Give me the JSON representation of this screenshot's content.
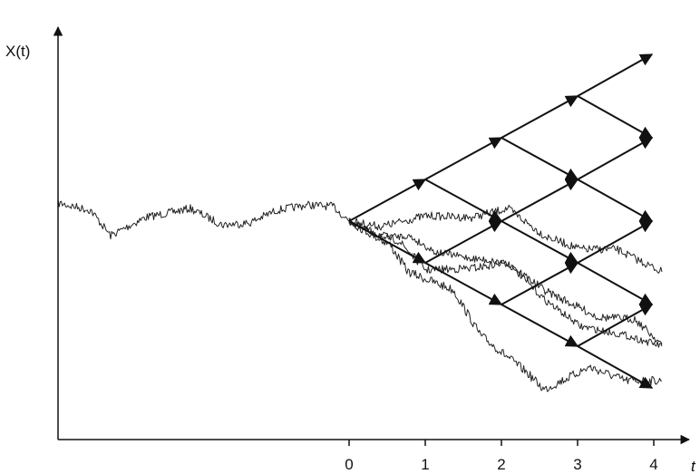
{
  "diagram": {
    "y_axis_label": "X(t)",
    "x_axis_label": "t",
    "x_ticks": [
      "0",
      "1",
      "2",
      "3",
      "4"
    ],
    "tree": {
      "type": "recombining binomial lattice",
      "steps": 4,
      "edges": [
        {
          "from": [
            0,
            0
          ],
          "to": [
            1,
            1
          ]
        },
        {
          "from": [
            0,
            0
          ],
          "to": [
            1,
            -1
          ]
        },
        {
          "from": [
            1,
            1
          ],
          "to": [
            2,
            2
          ]
        },
        {
          "from": [
            1,
            1
          ],
          "to": [
            2,
            0
          ]
        },
        {
          "from": [
            1,
            -1
          ],
          "to": [
            2,
            0
          ]
        },
        {
          "from": [
            1,
            -1
          ],
          "to": [
            2,
            -2
          ]
        },
        {
          "from": [
            2,
            2
          ],
          "to": [
            3,
            3
          ]
        },
        {
          "from": [
            2,
            2
          ],
          "to": [
            3,
            1
          ]
        },
        {
          "from": [
            2,
            0
          ],
          "to": [
            3,
            1
          ]
        },
        {
          "from": [
            2,
            0
          ],
          "to": [
            3,
            -1
          ]
        },
        {
          "from": [
            2,
            -2
          ],
          "to": [
            3,
            -1
          ]
        },
        {
          "from": [
            2,
            -2
          ],
          "to": [
            3,
            -3
          ]
        },
        {
          "from": [
            3,
            3
          ],
          "to": [
            4,
            4
          ]
        },
        {
          "from": [
            3,
            3
          ],
          "to": [
            4,
            2
          ]
        },
        {
          "from": [
            3,
            1
          ],
          "to": [
            4,
            2
          ]
        },
        {
          "from": [
            3,
            1
          ],
          "to": [
            4,
            0
          ]
        },
        {
          "from": [
            3,
            -1
          ],
          "to": [
            4,
            0
          ]
        },
        {
          "from": [
            3,
            -1
          ],
          "to": [
            4,
            -2
          ]
        },
        {
          "from": [
            3,
            -3
          ],
          "to": [
            4,
            -2
          ]
        },
        {
          "from": [
            3,
            -3
          ],
          "to": [
            4,
            -4
          ]
        }
      ]
    },
    "simulated_paths": 4,
    "colors": {
      "lines": "#111111",
      "background": "#ffffff"
    }
  }
}
